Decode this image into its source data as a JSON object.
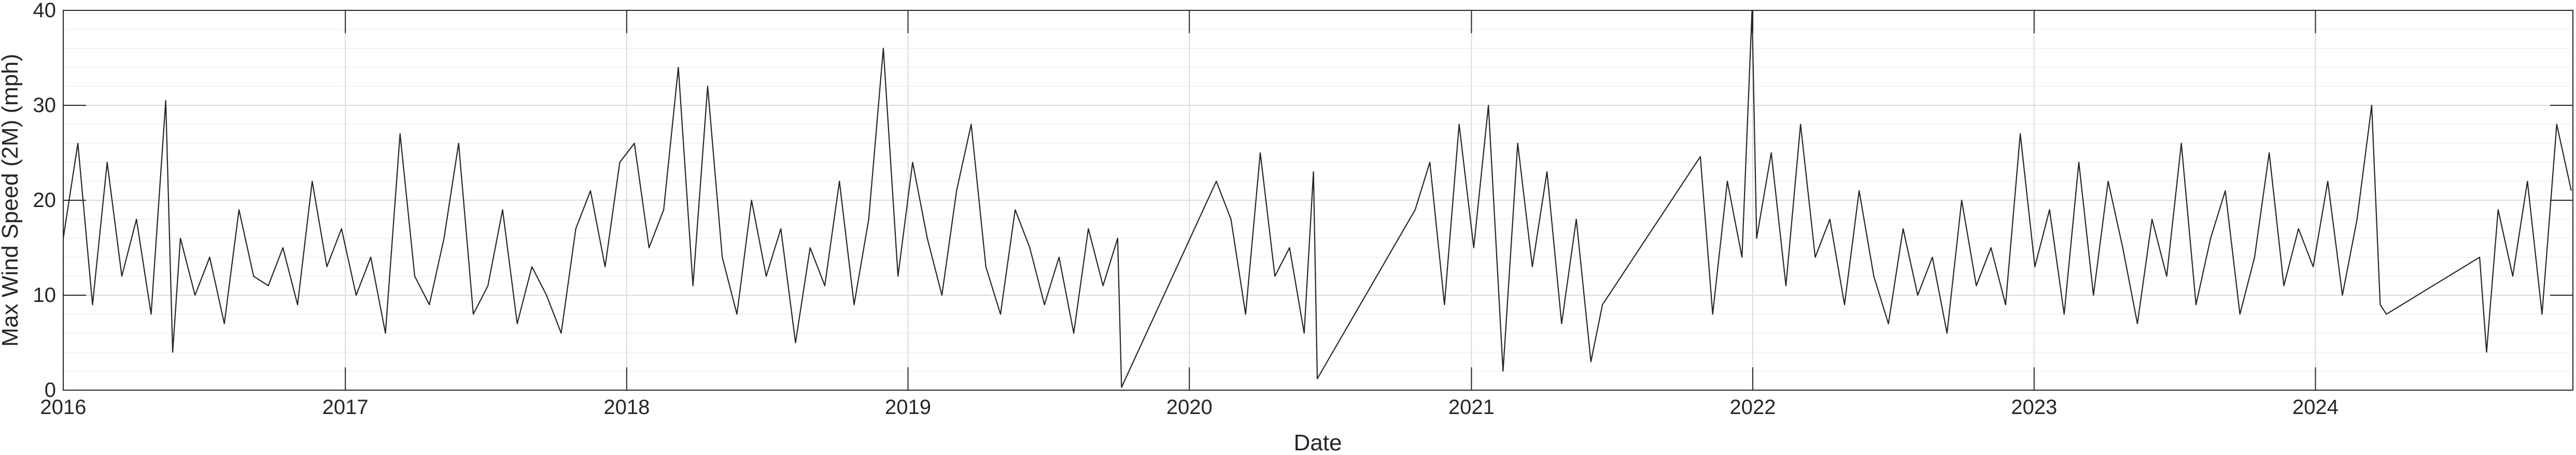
{
  "chart_data": {
    "type": "line",
    "title": "",
    "xlabel": "Date",
    "ylabel": "Max Wind Speed (2M) (mph)",
    "ylim": [
      0,
      40
    ],
    "xlim": [
      "2016-01-01",
      "2024-11-30"
    ],
    "yticks": [
      0,
      10,
      20,
      30,
      40
    ],
    "xticks": [
      "2016",
      "2017",
      "2018",
      "2019",
      "2020",
      "2021",
      "2022",
      "2023",
      "2024"
    ],
    "grid": true,
    "minor_grid": true,
    "legend": "none",
    "colors": {
      "line": "#262626",
      "major_grid": "#dcdcdc",
      "minor_grid": "#efefef",
      "axes": "#262626"
    },
    "series": [
      {
        "name": "",
        "x": [
          "2016-01-01",
          "2016-01-20",
          "2016-02-08",
          "2016-02-27",
          "2016-03-17",
          "2016-04-05",
          "2016-04-24",
          "2016-05-13",
          "2016-05-22",
          "2016-06-01",
          "2016-06-20",
          "2016-07-09",
          "2016-07-28",
          "2016-08-16",
          "2016-09-04",
          "2016-09-23",
          "2016-10-12",
          "2016-10-31",
          "2016-11-19",
          "2016-12-08",
          "2016-12-27",
          "2017-01-15",
          "2017-02-03",
          "2017-02-22",
          "2017-03-13",
          "2017-04-01",
          "2017-04-20",
          "2017-05-09",
          "2017-05-28",
          "2017-06-16",
          "2017-07-05",
          "2017-07-24",
          "2017-08-12",
          "2017-08-31",
          "2017-09-19",
          "2017-10-08",
          "2017-10-27",
          "2017-11-15",
          "2017-12-04",
          "2017-12-23",
          "2018-01-11",
          "2018-01-30",
          "2018-02-18",
          "2018-03-09",
          "2018-03-28",
          "2018-04-16",
          "2018-05-05",
          "2018-05-24",
          "2018-06-12",
          "2018-07-01",
          "2018-07-20",
          "2018-08-08",
          "2018-08-27",
          "2018-09-15",
          "2018-10-04",
          "2018-10-23",
          "2018-11-11",
          "2018-11-30",
          "2018-12-19",
          "2019-01-07",
          "2019-01-26",
          "2019-02-14",
          "2019-03-05",
          "2019-03-24",
          "2019-04-12",
          "2019-05-01",
          "2019-05-20",
          "2019-06-08",
          "2019-06-27",
          "2019-07-16",
          "2019-08-04",
          "2019-08-23",
          "2019-09-11",
          "2019-09-30",
          "2019-10-05",
          "2020-02-05",
          "2020-02-24",
          "2020-03-14",
          "2020-04-02",
          "2020-04-21",
          "2020-05-10",
          "2020-05-29",
          "2020-06-10",
          "2020-06-15",
          "2020-10-20",
          "2020-11-08",
          "2020-11-27",
          "2020-12-16",
          "2021-01-04",
          "2021-01-23",
          "2021-02-11",
          "2021-03-02",
          "2021-03-21",
          "2021-04-09",
          "2021-04-28",
          "2021-05-17",
          "2021-06-05",
          "2021-06-20",
          "2021-10-25",
          "2021-11-10",
          "2021-11-29",
          "2021-12-18",
          "2021-12-31",
          "2022-01-06",
          "2022-01-25",
          "2022-02-13",
          "2022-03-04",
          "2022-03-23",
          "2022-04-11",
          "2022-04-30",
          "2022-05-19",
          "2022-06-07",
          "2022-06-26",
          "2022-07-15",
          "2022-08-03",
          "2022-08-22",
          "2022-09-10",
          "2022-09-29",
          "2022-10-18",
          "2022-11-06",
          "2022-11-25",
          "2022-12-14",
          "2023-01-02",
          "2023-01-21",
          "2023-02-09",
          "2023-02-28",
          "2023-03-19",
          "2023-04-07",
          "2023-04-26",
          "2023-05-15",
          "2023-06-03",
          "2023-06-22",
          "2023-07-11",
          "2023-07-30",
          "2023-08-18",
          "2023-09-06",
          "2023-09-25",
          "2023-10-14",
          "2023-11-02",
          "2023-11-21",
          "2023-12-10",
          "2023-12-29",
          "2024-01-17",
          "2024-02-05",
          "2024-02-24",
          "2024-03-14",
          "2024-03-25",
          "2024-04-02",
          "2024-08-01",
          "2024-08-10",
          "2024-08-25",
          "2024-09-13",
          "2024-10-02",
          "2024-10-21",
          "2024-11-09",
          "2024-11-28"
        ],
        "y": [
          16,
          26,
          9,
          24,
          12,
          18,
          8,
          30.5,
          4,
          16,
          10,
          14,
          7,
          19,
          12,
          11,
          15,
          9,
          22,
          13,
          17,
          10,
          14,
          6,
          27,
          12,
          9,
          16,
          26,
          8,
          11,
          19,
          7,
          13,
          10,
          6,
          17,
          21,
          13,
          24,
          26,
          15,
          19,
          34,
          11,
          32,
          14,
          8,
          20,
          12,
          17,
          5,
          15,
          11,
          22,
          9,
          18,
          36,
          12,
          24,
          16,
          10,
          21,
          28,
          13,
          8,
          19,
          15,
          9,
          14,
          6,
          17,
          11,
          16,
          0.3,
          22,
          18,
          8,
          25,
          12,
          15,
          6,
          23,
          1.2,
          19,
          24,
          9,
          28,
          15,
          30,
          2,
          26,
          13,
          23,
          7,
          18,
          3,
          9,
          24.6,
          8,
          22,
          14,
          40,
          16,
          25,
          11,
          28,
          14,
          18,
          9,
          21,
          12,
          7,
          17,
          10,
          14,
          6,
          20,
          11,
          15,
          9,
          27,
          13,
          19,
          8,
          24,
          10,
          22,
          15,
          7,
          18,
          12,
          26,
          9,
          16,
          21,
          8,
          14,
          25,
          11,
          17,
          13,
          22,
          10,
          18,
          30,
          9,
          8,
          14,
          4,
          19,
          12,
          22,
          8,
          28,
          21
        ]
      }
    ]
  }
}
